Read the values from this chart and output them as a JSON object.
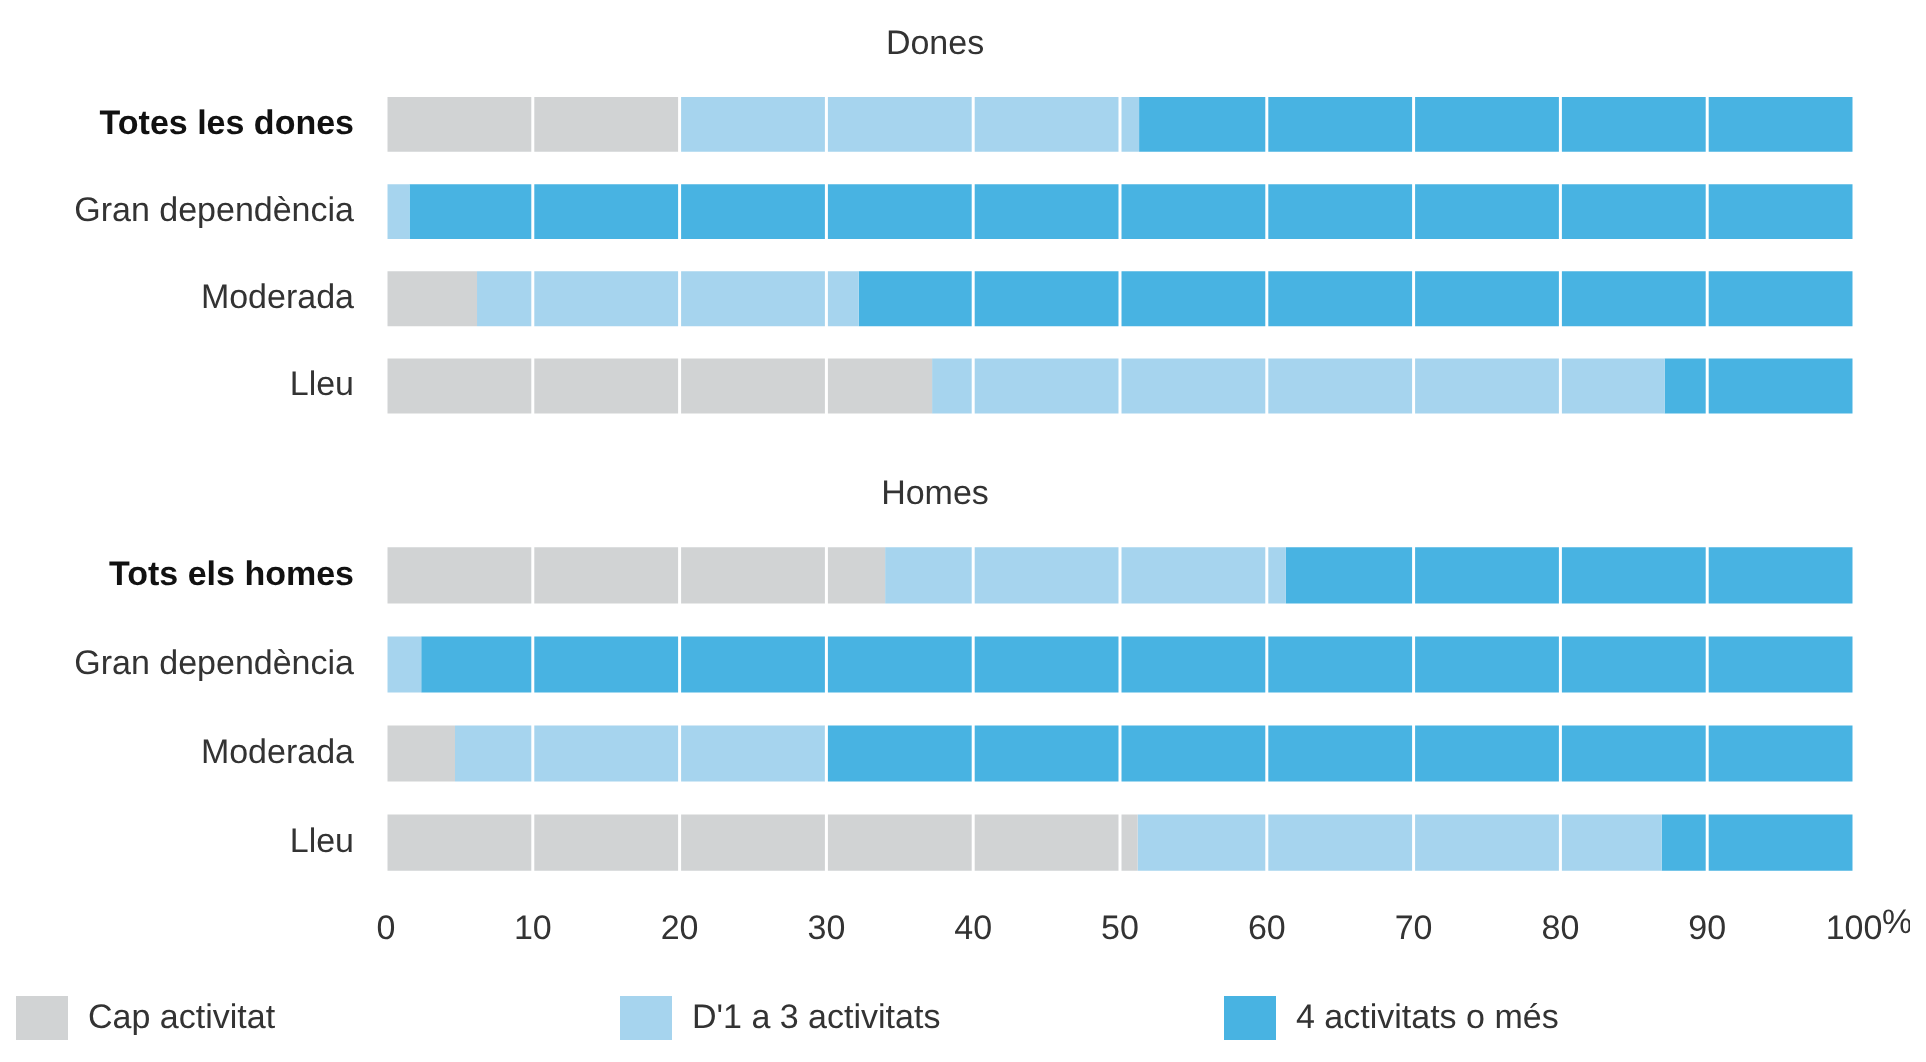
{
  "chart_data": [
    {
      "type": "bar",
      "orientation": "horizontal",
      "stacked": true,
      "title": "Dones",
      "categories": [
        "Totes les dones",
        "Gran dependència",
        "Moderada",
        "Lleu"
      ],
      "series": [
        {
          "color": "#d1d3d4",
          "values": [
            20,
            0,
            6.2,
            37.2
          ]
        },
        {
          "color": "#a6d4ee",
          "values": [
            31.3,
            1.6,
            26.0,
            49.9
          ]
        },
        {
          "color": "#48b3e2",
          "values": [
            48.7,
            98.4,
            67.8,
            12.9
          ]
        }
      ],
      "xlim": [
        0,
        100
      ],
      "xticks": [
        0,
        10,
        20,
        30,
        40,
        50,
        60,
        70,
        80,
        90,
        100
      ],
      "grid": "x",
      "tick_labels": "y",
      "legend": false
    },
    {
      "type": "bar",
      "orientation": "horizontal",
      "stacked": true,
      "title": "Homes",
      "xlabel": "%",
      "categories": [
        "Tots els homes",
        "Gran dependència",
        "Moderada",
        "Lleu"
      ],
      "series": [
        {
          "name": "Cap activitat",
          "color": "#d1d3d4",
          "values": [
            34.0,
            0,
            4.7,
            51.2
          ]
        },
        {
          "name": "D'1 a 3 activitats",
          "color": "#a6d4ee",
          "values": [
            27.3,
            2.4,
            25.2,
            35.7
          ]
        },
        {
          "name": "4 activitats o més",
          "color": "#48b3e2",
          "values": [
            38.7,
            97.6,
            70.1,
            13.1
          ]
        }
      ],
      "xlim": [
        0,
        100
      ],
      "xticks": [
        0,
        10,
        20,
        30,
        40,
        50,
        60,
        70,
        80,
        90,
        100
      ],
      "grid": "x",
      "legend": "bottom"
    }
  ]
}
